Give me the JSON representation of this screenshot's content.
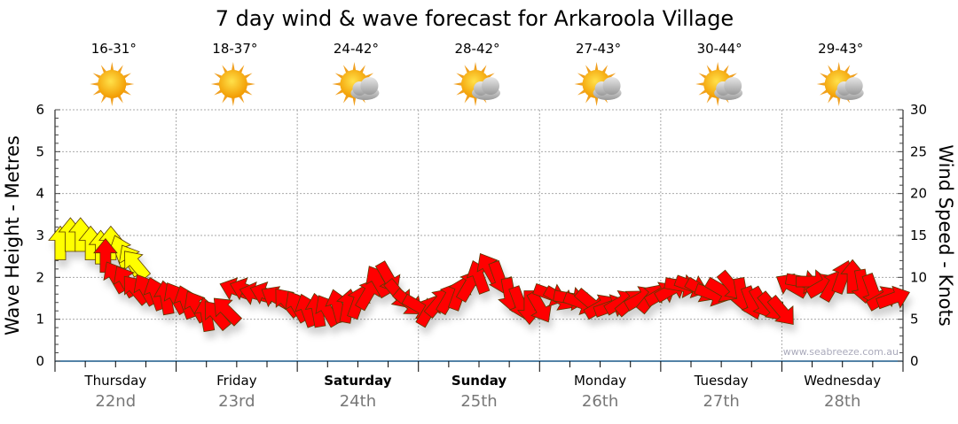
{
  "chart_data": {
    "type": "scatter",
    "title": "7 day wind & wave forecast for Arkaroola Village",
    "ylabel_left": "Wave Height - Metres",
    "ylabel_right": "Wind Speed - Knots",
    "ylim_left": [
      0,
      6
    ],
    "ylim_right": [
      0,
      30
    ],
    "yticks_left": [
      "0",
      "1",
      "2",
      "3",
      "4",
      "5",
      "6"
    ],
    "yticks_right": [
      "0",
      "5",
      "10",
      "15",
      "20",
      "25",
      "30"
    ],
    "grid": true,
    "watermark": "www.seabreeze.com.au",
    "days": [
      {
        "name": "Thursday",
        "date": "22nd",
        "temp": "16-31°",
        "icon": "sunny",
        "bold": false
      },
      {
        "name": "Friday",
        "date": "23rd",
        "temp": "18-37°",
        "icon": "sunny",
        "bold": false
      },
      {
        "name": "Saturday",
        "date": "24th",
        "temp": "24-42°",
        "icon": "partly-cloudy",
        "bold": true
      },
      {
        "name": "Sunday",
        "date": "25th",
        "temp": "28-42°",
        "icon": "partly-cloudy",
        "bold": true
      },
      {
        "name": "Monday",
        "date": "26th",
        "temp": "27-43°",
        "icon": "partly-cloudy",
        "bold": false
      },
      {
        "name": "Tuesday",
        "date": "27th",
        "temp": "30-44°",
        "icon": "partly-cloudy",
        "bold": false
      },
      {
        "name": "Wednesday",
        "date": "28th",
        "temp": "29-43°",
        "icon": "partly-cloudy",
        "bold": false
      }
    ],
    "wave": {
      "name": "Wave height (m)",
      "color": "#ffff00",
      "hours": [
        0,
        2,
        4,
        6,
        8,
        10,
        12,
        14,
        15
      ],
      "values": [
        2.8,
        3.0,
        3.0,
        2.8,
        2.7,
        2.8,
        2.6,
        2.4,
        2.3
      ],
      "directions": [
        0,
        0,
        0,
        0,
        0,
        0,
        340,
        330,
        320
      ]
    },
    "wind": {
      "name": "Wind speed (knots)",
      "color": "#ff0000",
      "start_hour": 10,
      "step_hours": 2,
      "values": [
        12.5,
        10,
        9.5,
        8.5,
        8.5,
        8,
        7.5,
        7.5,
        7,
        6.5,
        5.5,
        5.5,
        6,
        8.5,
        8.5,
        8,
        8,
        7.5,
        7,
        6.5,
        6,
        6,
        6,
        6.5,
        6.5,
        7,
        8,
        9.5,
        10,
        8,
        7,
        6.5,
        6,
        7,
        7.5,
        8,
        9,
        10,
        11,
        10,
        8,
        7,
        6.5,
        6.5,
        8,
        7.5,
        7.5,
        7,
        7,
        6.5,
        6.5,
        7,
        7,
        7.5,
        7.5,
        8,
        8.5,
        9,
        9,
        8.5,
        8,
        8.5,
        9,
        8,
        7,
        7,
        6.5,
        6,
        9,
        9.5,
        9.5,
        9,
        9,
        10,
        10,
        9,
        8.5,
        7.5,
        7.5,
        8.5
      ],
      "directions": [
        0,
        330,
        330,
        320,
        330,
        340,
        350,
        330,
        340,
        330,
        350,
        320,
        315,
        290,
        290,
        285,
        290,
        300,
        320,
        330,
        340,
        350,
        330,
        345,
        10,
        20,
        30,
        330,
        150,
        140,
        130,
        120,
        30,
        40,
        30,
        20,
        30,
        340,
        330,
        160,
        170,
        160,
        180,
        150,
        110,
        120,
        100,
        110,
        130,
        60,
        70,
        60,
        50,
        60,
        40,
        60,
        60,
        100,
        110,
        120,
        110,
        120,
        140,
        170,
        160,
        150,
        140,
        140,
        300,
        100,
        90,
        60,
        30,
        20,
        0,
        170,
        160,
        60,
        70,
        80
      ]
    }
  }
}
